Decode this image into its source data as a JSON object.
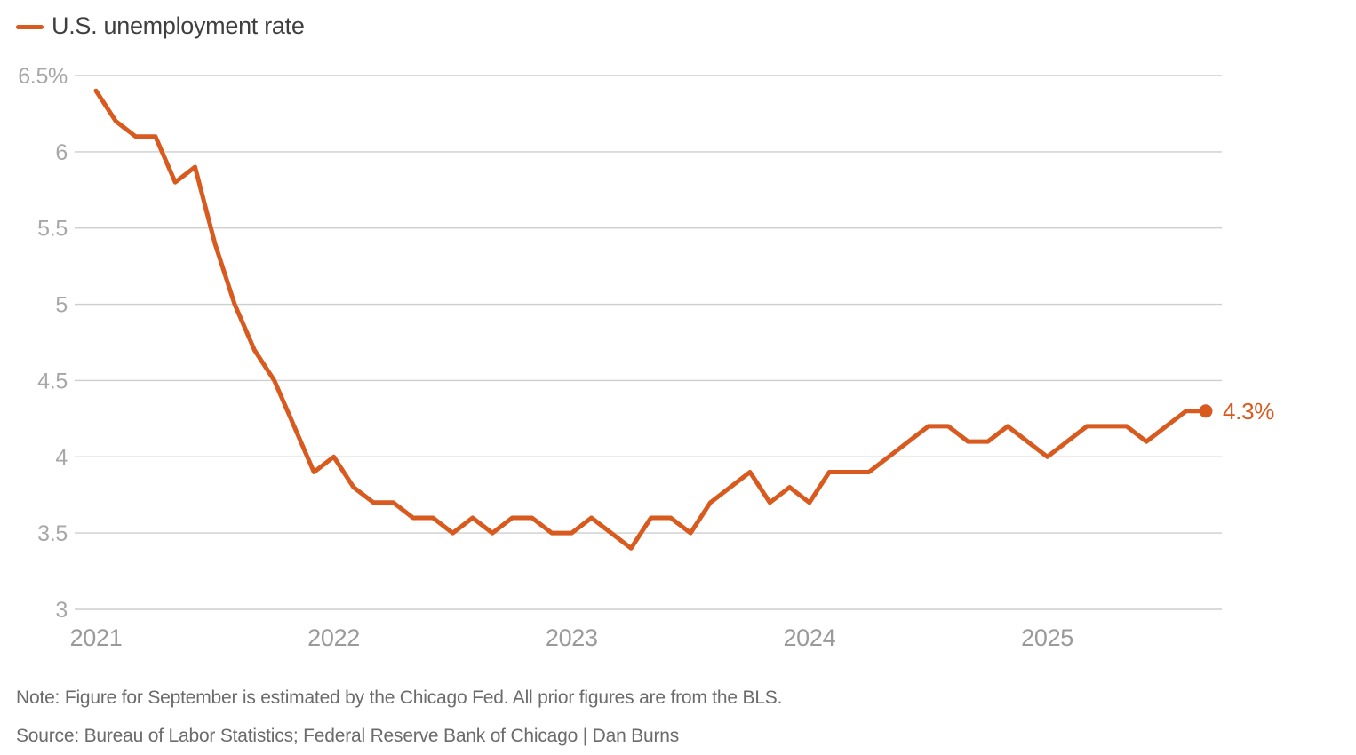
{
  "legend": {
    "label": "U.S. unemployment rate"
  },
  "footer": {
    "note": "Note: Figure for September is estimated by the Chicago Fed. All prior figures are from the BLS.",
    "source": "Source: Bureau of Labor Statistics; Federal Reserve Bank of Chicago | Dan Burns"
  },
  "colors": {
    "accent": "#d85a1e",
    "grid": "#cecece",
    "ytick": "#a7a7a7",
    "xtick": "#9a9a9a",
    "legend_text": "#3f3f3f",
    "note_text": "#6b6b6b",
    "bg": "#ffffff"
  },
  "chart_data": {
    "type": "line",
    "title": "U.S. unemployment rate",
    "unit": "%",
    "frequency": "monthly",
    "grid": "horizontal",
    "legend_position": "top-left",
    "xlabel": "",
    "ylabel": "",
    "ylim": [
      3,
      6.5
    ],
    "y_ticks": [
      6.5,
      6,
      5.5,
      5,
      4.5,
      4,
      3.5,
      3
    ],
    "y_tick_labels": [
      "6.5%",
      "6",
      "5.5",
      "5",
      "4.5",
      "4",
      "3.5",
      "3"
    ],
    "x_tick_labels": [
      "2021",
      "2022",
      "2023",
      "2024",
      "2025"
    ],
    "x_tick_month_index": [
      0,
      12,
      24,
      36,
      48
    ],
    "end_label": "4.3%",
    "months": [
      "2021-01",
      "2021-02",
      "2021-03",
      "2021-04",
      "2021-05",
      "2021-06",
      "2021-07",
      "2021-08",
      "2021-09",
      "2021-10",
      "2021-11",
      "2021-12",
      "2022-01",
      "2022-02",
      "2022-03",
      "2022-04",
      "2022-05",
      "2022-06",
      "2022-07",
      "2022-08",
      "2022-09",
      "2022-10",
      "2022-11",
      "2022-12",
      "2023-01",
      "2023-02",
      "2023-03",
      "2023-04",
      "2023-05",
      "2023-06",
      "2023-07",
      "2023-08",
      "2023-09",
      "2023-10",
      "2023-11",
      "2023-12",
      "2024-01",
      "2024-02",
      "2024-03",
      "2024-04",
      "2024-05",
      "2024-06",
      "2024-07",
      "2024-08",
      "2024-09",
      "2024-10",
      "2024-11",
      "2024-12",
      "2025-01",
      "2025-02",
      "2025-03",
      "2025-04",
      "2025-05",
      "2025-06",
      "2025-07",
      "2025-08",
      "2025-09"
    ],
    "series": [
      {
        "name": "U.S. unemployment rate",
        "color": "#d85a1e",
        "values": [
          6.4,
          6.2,
          6.1,
          6.1,
          5.8,
          5.9,
          5.4,
          5.0,
          4.7,
          4.5,
          4.2,
          3.9,
          4.0,
          3.8,
          3.7,
          3.7,
          3.6,
          3.6,
          3.5,
          3.6,
          3.5,
          3.6,
          3.6,
          3.5,
          3.5,
          3.6,
          3.5,
          3.4,
          3.6,
          3.6,
          3.5,
          3.7,
          3.8,
          3.9,
          3.7,
          3.8,
          3.7,
          3.9,
          3.9,
          3.9,
          4.0,
          4.1,
          4.2,
          4.2,
          4.1,
          4.1,
          4.2,
          4.1,
          4.0,
          4.1,
          4.2,
          4.2,
          4.2,
          4.1,
          4.2,
          4.3,
          4.3
        ]
      }
    ]
  }
}
